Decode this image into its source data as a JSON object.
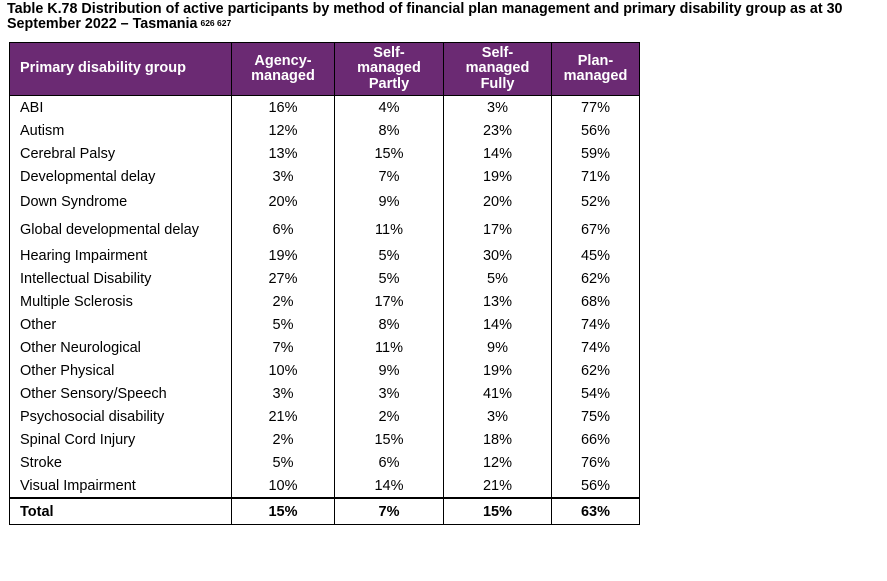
{
  "caption": {
    "text": "Table K.78 Distribution of active participants by method of financial plan management and primary disability group as at 30 September 2022 – Tasmania",
    "footnotes": "626 627"
  },
  "table": {
    "headers": [
      "Primary disability group",
      "Agency-managed",
      "Self-managed Partly",
      "Self-managed Fully",
      "Plan-managed"
    ],
    "rows": [
      [
        "ABI",
        "16%",
        "4%",
        "3%",
        "77%"
      ],
      [
        "Autism",
        "12%",
        "8%",
        "23%",
        "56%"
      ],
      [
        "Cerebral Palsy",
        "13%",
        "15%",
        "14%",
        "59%"
      ],
      [
        "Developmental delay",
        "3%",
        "7%",
        "19%",
        "71%"
      ],
      [
        "Down Syndrome",
        "20%",
        "9%",
        "20%",
        "52%"
      ],
      [
        "Global developmental delay",
        "6%",
        "11%",
        "17%",
        "67%"
      ],
      [
        "Hearing Impairment",
        "19%",
        "5%",
        "30%",
        "45%"
      ],
      [
        "Intellectual Disability",
        "27%",
        "5%",
        "5%",
        "62%"
      ],
      [
        "Multiple Sclerosis",
        "2%",
        "17%",
        "13%",
        "68%"
      ],
      [
        "Other",
        "5%",
        "8%",
        "14%",
        "74%"
      ],
      [
        "Other Neurological",
        "7%",
        "11%",
        "9%",
        "74%"
      ],
      [
        "Other Physical",
        "10%",
        "9%",
        "19%",
        "62%"
      ],
      [
        "Other Sensory/Speech",
        "3%",
        "3%",
        "41%",
        "54%"
      ],
      [
        "Psychosocial disability",
        "21%",
        "2%",
        "3%",
        "75%"
      ],
      [
        "Spinal Cord Injury",
        "2%",
        "15%",
        "18%",
        "66%"
      ],
      [
        "Stroke",
        "5%",
        "6%",
        "12%",
        "76%"
      ],
      [
        "Visual Impairment",
        "10%",
        "14%",
        "21%",
        "56%"
      ]
    ],
    "total": [
      "Total",
      "15%",
      "7%",
      "15%",
      "63%"
    ]
  }
}
